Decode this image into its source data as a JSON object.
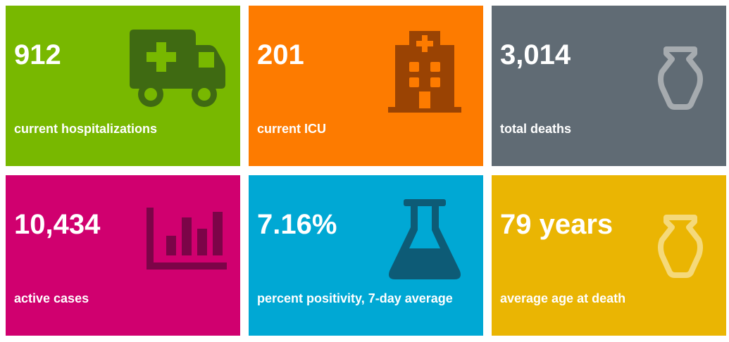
{
  "tiles": [
    {
      "value": "912",
      "label": "current hospitalizations",
      "bg": "#78b800",
      "icon": "ambulance-icon",
      "icon_color": "#3f6a12"
    },
    {
      "value": "201",
      "label": "current ICU",
      "bg": "#fd7b00",
      "icon": "hospital-icon",
      "icon_color": "#9a4303"
    },
    {
      "value": "3,014",
      "label": "total deaths",
      "bg": "#606b74",
      "icon": "urn-icon",
      "icon_color": "#a6abaf"
    },
    {
      "value": "10,434",
      "label": "active cases",
      "bg": "#d0006f",
      "icon": "bar-chart-icon",
      "icon_color": "#7c0448"
    },
    {
      "value": "7.16%",
      "label": "percent positivity, 7-day average",
      "bg": "#00a8d4",
      "icon": "flask-icon",
      "icon_color": "#0d5b76"
    },
    {
      "value": "79 years",
      "label": "average age at death",
      "bg": "#eab503",
      "icon": "urn-icon",
      "icon_color": "#f5d97a"
    }
  ]
}
